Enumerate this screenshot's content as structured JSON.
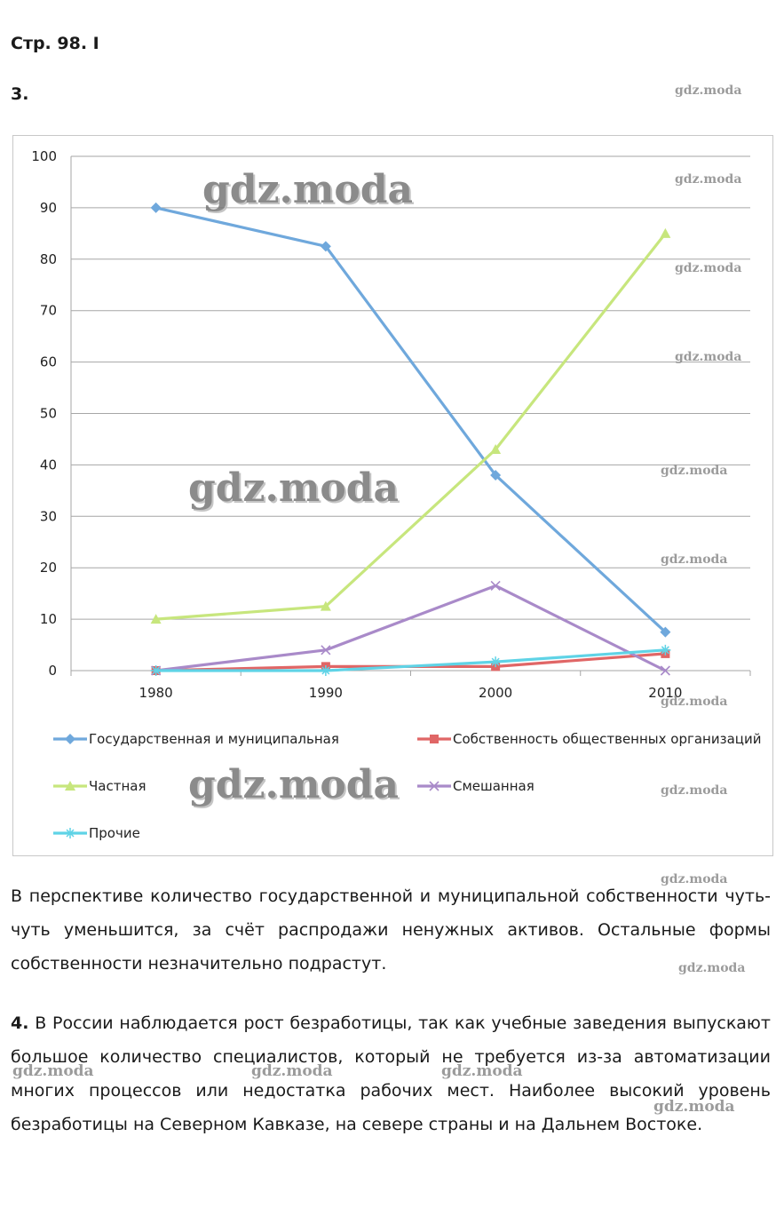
{
  "header": {
    "page_ref": "Стр. 98. I",
    "task3_number": "3."
  },
  "watermark": {
    "small": "gdz.moda",
    "big": "gdz.moda"
  },
  "chart_data": {
    "type": "line",
    "categories": [
      "1980",
      "1990",
      "2000",
      "2010"
    ],
    "ylim": [
      0,
      100
    ],
    "yticks": [
      "0",
      "10",
      "20",
      "30",
      "40",
      "50",
      "60",
      "70",
      "80",
      "90",
      "100"
    ],
    "ytick_values": [
      0,
      10,
      20,
      30,
      40,
      50,
      60,
      70,
      80,
      90,
      100
    ],
    "title": "",
    "xlabel": "",
    "ylabel": "",
    "legend_position": "bottom",
    "series": [
      {
        "name": "Государственная и муниципальная",
        "values": [
          90,
          82.5,
          38,
          7.5
        ],
        "color": "#6fa8dc",
        "marker": "diamond"
      },
      {
        "name": "Собственность общественных организаций",
        "values": [
          0,
          0.8,
          0.8,
          3.3
        ],
        "color": "#e06666",
        "marker": "square"
      },
      {
        "name": "Частная",
        "values": [
          10,
          12.5,
          43,
          85
        ],
        "color": "#c7e67d",
        "marker": "triangle"
      },
      {
        "name": "Смешанная",
        "values": [
          0,
          4,
          16.5,
          0
        ],
        "color": "#a98ac9",
        "marker": "x"
      },
      {
        "name": "Прочие",
        "values": [
          0,
          0,
          1.7,
          4
        ],
        "color": "#5fd3e6",
        "marker": "star"
      }
    ]
  },
  "answer3_text": "В перспективе количество государственной и муниципальной собственности чуть-чуть уменьшится, за счёт распродажи ненужных активов. Остальные формы собственности незначительно подрастут.",
  "task4": {
    "number": "4.",
    "text": "В России наблюдается рост безработицы, так как учебные заведения выпускают большое количество специалистов, который не требуется из-за автоматизации многих процессов или недостатка рабочих мест. Наиболее высокий уровень безработицы на Северном Кавказе, на севере страны и на Дальнем Востоке."
  }
}
